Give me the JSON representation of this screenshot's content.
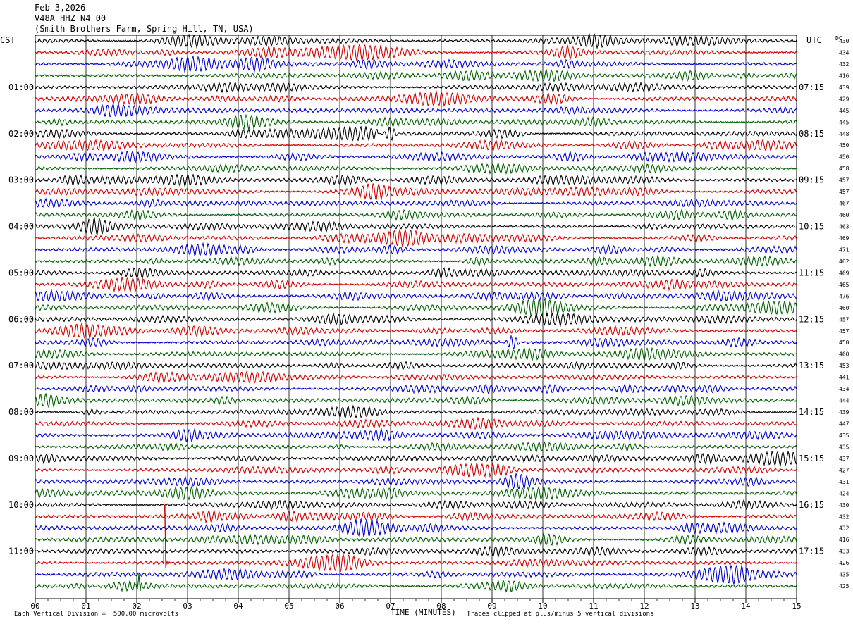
{
  "header": {
    "date": "Feb 3,2026",
    "station": "V48A HHZ N4 00",
    "location": "(Smith Brothers Farm, Spring Hill, TN, USA)"
  },
  "left_timezone": "CST",
  "right_timezone": "UTC",
  "dc_label": "DC",
  "footer": {
    "scale_note": "Each Vertical Division =  500.00 microvolts",
    "xaxis_title": "TIME (MINUTES)",
    "clip_note": "Traces clipped at plus/minus 5 vertical divisions"
  },
  "colors": {
    "trace_cycle": [
      "#000000",
      "#d00000",
      "#0000d0",
      "#006000"
    ],
    "grid": "#000000"
  },
  "chart_data": {
    "type": "line",
    "title": "V48A HHZ N4 00",
    "xlabel": "TIME (MINUTES)",
    "xlim": [
      0,
      15
    ],
    "x_ticks": [
      "00",
      "01",
      "02",
      "03",
      "04",
      "05",
      "06",
      "07",
      "08",
      "09",
      "10",
      "11",
      "12",
      "13",
      "14",
      "15"
    ],
    "left_hour_labels": [
      "01:00",
      "02:00",
      "03:00",
      "04:00",
      "05:00",
      "06:00",
      "07:00",
      "08:00",
      "09:00",
      "10:00",
      "11:00"
    ],
    "right_hour_labels": [
      "07:15",
      "08:15",
      "09:15",
      "10:15",
      "11:15",
      "12:15",
      "13:15",
      "14:15",
      "15:15",
      "16:15",
      "17:15"
    ],
    "dc_offsets": [
      430,
      434,
      432,
      416,
      439,
      429,
      445,
      445,
      448,
      450,
      450,
      458,
      457,
      457,
      467,
      460,
      463,
      469,
      471,
      462,
      469,
      465,
      476,
      460,
      457,
      457,
      450,
      460,
      453,
      441,
      434,
      444,
      439,
      447,
      435,
      435,
      437,
      427,
      431,
      424,
      430,
      432,
      432,
      416,
      433,
      426,
      435,
      425
    ],
    "events": [
      {
        "trace": 45,
        "minute": 2.55,
        "kind": "large spike"
      },
      {
        "trace": 47,
        "minute": 2.05,
        "kind": "spike"
      },
      {
        "trace": 26,
        "minute": 9.4,
        "kind": "burst"
      },
      {
        "trace": 8,
        "minute": 7.0,
        "kind": "burst"
      }
    ]
  }
}
